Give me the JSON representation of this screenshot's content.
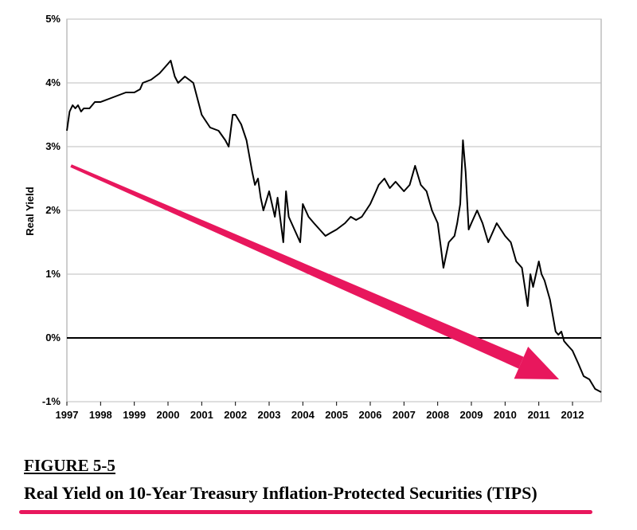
{
  "figure": {
    "number": "FIGURE 5-5",
    "caption": "Real Yield on 10-Year Treasury Inflation-Protected Securities (TIPS)"
  },
  "colors": {
    "line": "#000000",
    "arrow": "#e8175d",
    "grid": "#bdbdbd",
    "caption_underline": "#e8175d"
  },
  "chart_data": {
    "type": "line",
    "title": "",
    "xlabel": "",
    "ylabel": "Real Yield",
    "x_tick_labels": [
      "1997",
      "1998",
      "1999",
      "2000",
      "2001",
      "2002",
      "2003",
      "2004",
      "2005",
      "2006",
      "2007",
      "2008",
      "2009",
      "2010",
      "2011",
      "2012"
    ],
    "y_tick_labels": [
      "5%",
      "4%",
      "3%",
      "2%",
      "1%",
      "0%",
      "-1%"
    ],
    "y_ticks": [
      5,
      4,
      3,
      2,
      1,
      0,
      -1
    ],
    "xlim": [
      1997.0,
      2012.85
    ],
    "ylim": [
      -1,
      5
    ],
    "grid": true,
    "zero_line": true,
    "series": [
      {
        "x": [
          1997.0,
          1997.08,
          1997.17,
          1997.25,
          1997.33,
          1997.42,
          1997.5,
          1997.67,
          1997.83,
          1998.0,
          1998.25,
          1998.5,
          1998.75,
          1999.0,
          1999.17,
          1999.25,
          1999.5,
          1999.75,
          2000.0,
          2000.08,
          2000.2,
          2000.3,
          2000.5,
          2000.75,
          2000.9,
          2001.0,
          2001.25,
          2001.5,
          2001.7,
          2001.8,
          2001.92,
          2002.0,
          2002.17,
          2002.33,
          2002.5,
          2002.58,
          2002.67,
          2002.75,
          2002.83,
          2003.0,
          2003.17,
          2003.25,
          2003.42,
          2003.5,
          2003.58,
          2003.75,
          2003.92,
          2004.0,
          2004.17,
          2004.33,
          2004.5,
          2004.67,
          2004.83,
          2005.0,
          2005.25,
          2005.42,
          2005.58,
          2005.75,
          2006.0,
          2006.17,
          2006.25,
          2006.42,
          2006.58,
          2006.75,
          2007.0,
          2007.17,
          2007.33,
          2007.5,
          2007.67,
          2007.83,
          2008.0,
          2008.1,
          2008.17,
          2008.33,
          2008.5,
          2008.58,
          2008.67,
          2008.75,
          2008.83,
          2008.92,
          2009.0,
          2009.17,
          2009.33,
          2009.5,
          2009.75,
          2010.0,
          2010.17,
          2010.33,
          2010.5,
          2010.67,
          2010.75,
          2010.83,
          2011.0,
          2011.08,
          2011.17,
          2011.33,
          2011.5,
          2011.58,
          2011.67,
          2011.75,
          2011.83,
          2012.0,
          2012.17,
          2012.33,
          2012.5,
          2012.67,
          2012.85
        ],
        "y": [
          3.25,
          3.55,
          3.65,
          3.6,
          3.65,
          3.55,
          3.6,
          3.6,
          3.7,
          3.7,
          3.75,
          3.8,
          3.85,
          3.85,
          3.9,
          4.0,
          4.05,
          4.15,
          4.3,
          4.35,
          4.1,
          4.0,
          4.1,
          4.0,
          3.7,
          3.5,
          3.3,
          3.25,
          3.1,
          3.0,
          3.5,
          3.5,
          3.35,
          3.1,
          2.6,
          2.4,
          2.5,
          2.2,
          2.0,
          2.3,
          1.9,
          2.2,
          1.5,
          2.3,
          1.9,
          1.7,
          1.5,
          2.1,
          1.9,
          1.8,
          1.7,
          1.6,
          1.65,
          1.7,
          1.8,
          1.9,
          1.85,
          1.9,
          2.1,
          2.3,
          2.4,
          2.5,
          2.35,
          2.45,
          2.3,
          2.4,
          2.7,
          2.4,
          2.3,
          2.0,
          1.8,
          1.4,
          1.1,
          1.5,
          1.6,
          1.8,
          2.1,
          3.1,
          2.6,
          1.7,
          1.8,
          2.0,
          1.8,
          1.5,
          1.8,
          1.6,
          1.5,
          1.2,
          1.1,
          0.5,
          1.0,
          0.8,
          1.2,
          1.0,
          0.9,
          0.6,
          0.1,
          0.05,
          0.1,
          -0.05,
          -0.1,
          -0.2,
          -0.4,
          -0.6,
          -0.65,
          -0.8,
          -0.85
        ]
      }
    ],
    "annotation": "arrow-downward-trend"
  }
}
